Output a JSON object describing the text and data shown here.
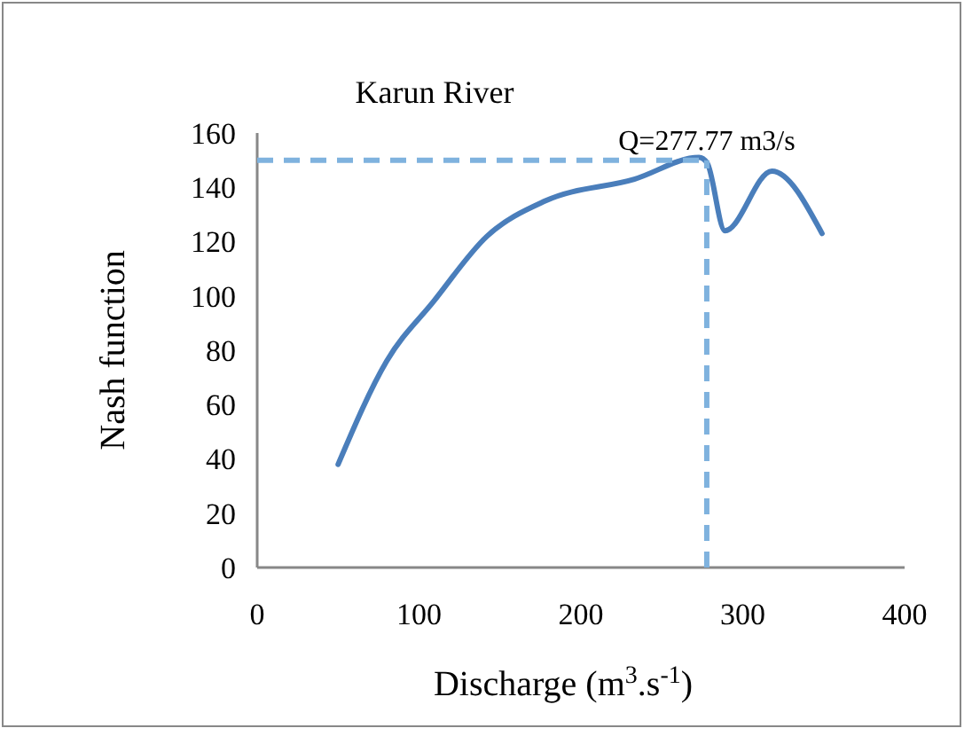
{
  "chart_data": {
    "type": "line",
    "title": "Karun  River",
    "xlabel": "Discharge (m$^{3}$.s$^{-1}$)",
    "ylabel": "Nash function",
    "series": [
      {
        "color": "#4a7ebb",
        "x": [
          50,
          80,
          109,
          142,
          178,
          233,
          273,
          278,
          289,
          318,
          349
        ],
        "values": [
          38,
          76,
          98,
          122,
          135,
          143,
          151,
          149,
          124,
          146,
          123
        ]
      }
    ],
    "xlim": [
      0,
      400
    ],
    "xticks": [
      0,
      100,
      200,
      300,
      400
    ],
    "ylim": [
      0,
      160
    ],
    "yticks": [
      0,
      20,
      40,
      60,
      80,
      100,
      120,
      140,
      160
    ],
    "ref_lines": [
      {
        "axis": "y",
        "value": 150,
        "color": "#7fb2de",
        "line_style": "dashed"
      },
      {
        "axis": "x",
        "value": 277.77,
        "label": "Q=277.77 m3/s",
        "color": "#7fb2de",
        "line_style": "dashed"
      }
    ],
    "grid": false,
    "marker": "none",
    "line_style": "solid"
  }
}
